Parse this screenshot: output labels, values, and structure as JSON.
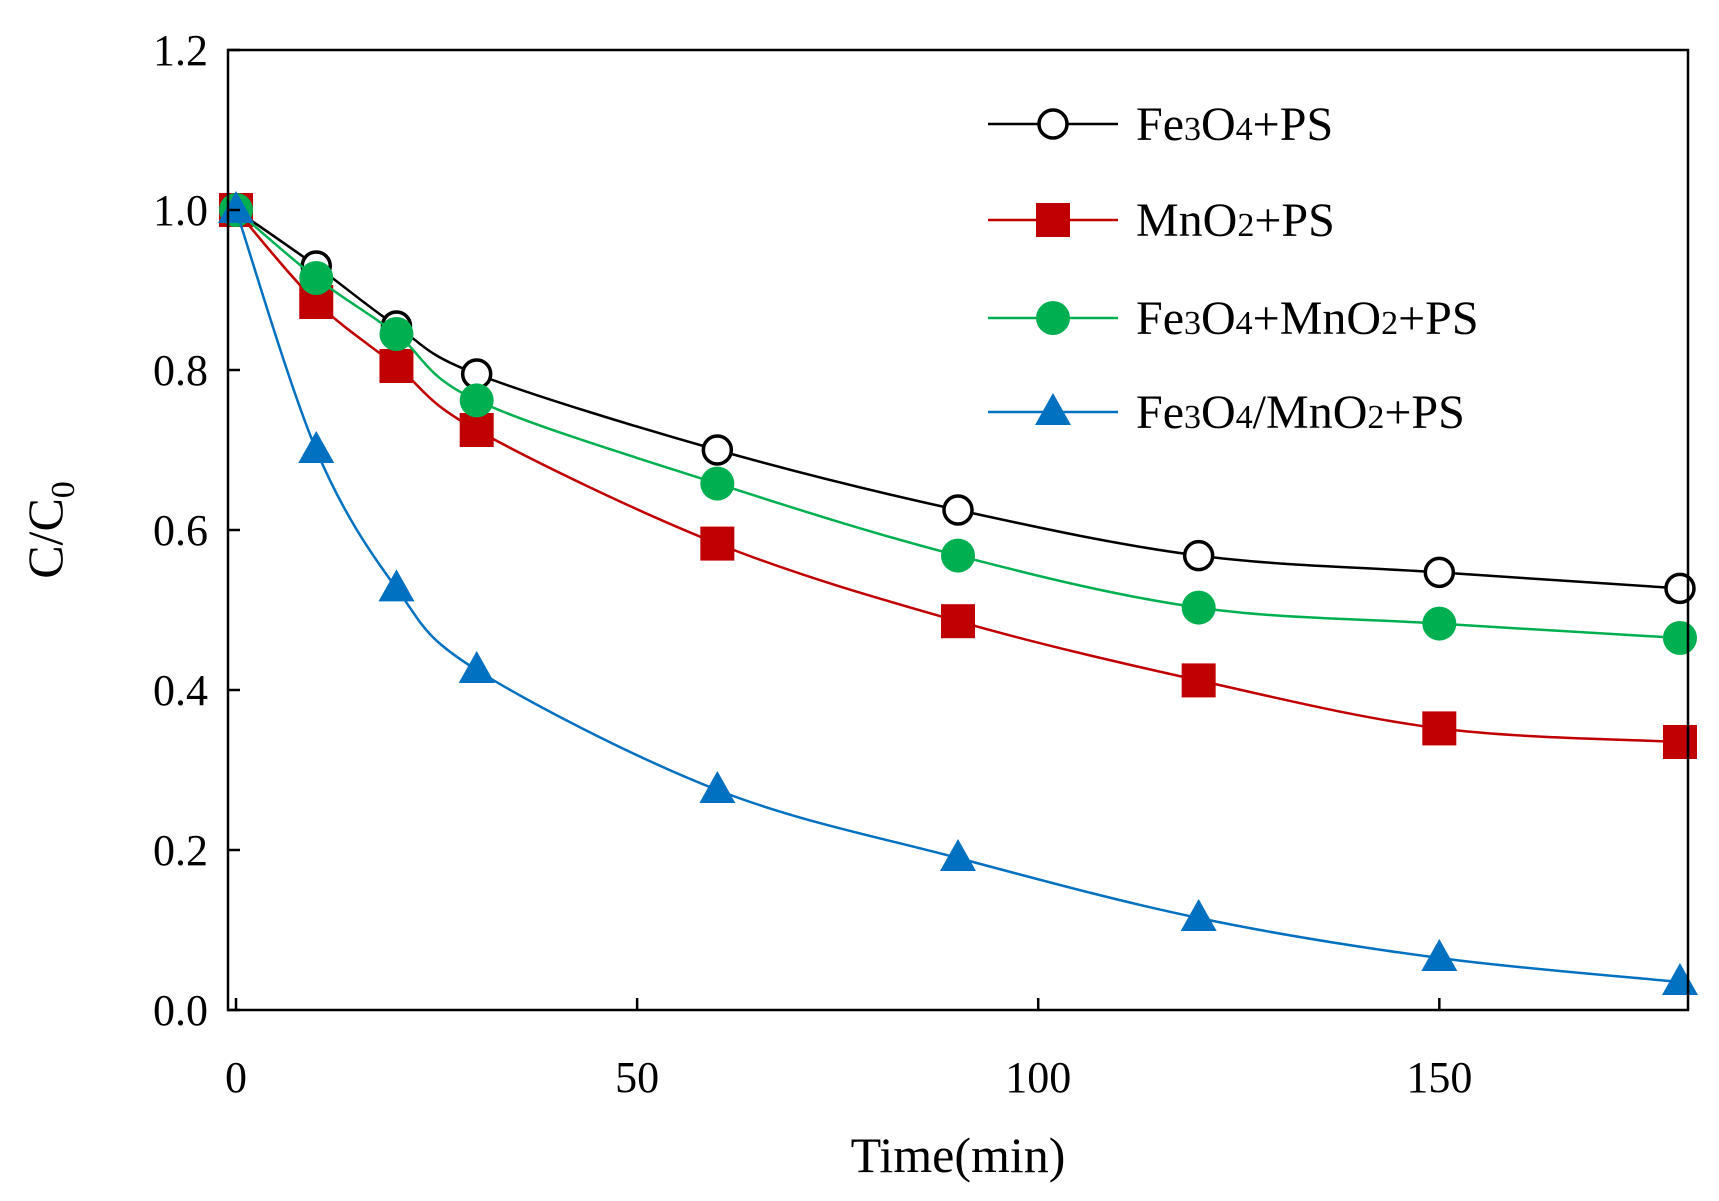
{
  "chart_data": {
    "type": "line",
    "title": "",
    "xlabel": "Time(min)",
    "ylabel": {
      "main": "C/C",
      "sub": "0"
    },
    "xlim": [
      -1,
      181
    ],
    "ylim": [
      0,
      1.2
    ],
    "x_ticks": [
      0,
      50,
      100,
      150
    ],
    "y_ticks": [
      0.0,
      0.2,
      0.4,
      0.6,
      0.8,
      1.0,
      1.2
    ],
    "x_tick_labels": [
      "0",
      "50",
      "100",
      "150"
    ],
    "y_tick_labels": [
      "0.0",
      "0.2",
      "0.4",
      "0.6",
      "0.8",
      "1.0",
      "1.2"
    ],
    "grid": false,
    "legend_position": "top-right",
    "x": [
      0,
      10,
      20,
      30,
      60,
      90,
      120,
      150,
      180
    ],
    "series": [
      {
        "name_parts": [
          [
            "Fe",
            ""
          ],
          [
            "3",
            "sub"
          ],
          [
            "O",
            ""
          ],
          [
            "4",
            "sub"
          ],
          [
            "+PS",
            ""
          ]
        ],
        "name": "Fe3O4+PS",
        "color": "#000000",
        "marker": "open-circle",
        "values": [
          1.0,
          0.93,
          0.855,
          0.795,
          0.7,
          0.625,
          0.568,
          0.547,
          0.527
        ]
      },
      {
        "name_parts": [
          [
            "MnO",
            ""
          ],
          [
            "2",
            "sub"
          ],
          [
            "+PS",
            ""
          ]
        ],
        "name": "MnO2+PS",
        "color": "#c00000",
        "marker": "square",
        "values": [
          1.0,
          0.885,
          0.805,
          0.725,
          0.583,
          0.486,
          0.412,
          0.352,
          0.335
        ]
      },
      {
        "name_parts": [
          [
            "Fe",
            ""
          ],
          [
            "3",
            "sub"
          ],
          [
            "O",
            ""
          ],
          [
            "4",
            "sub"
          ],
          [
            "+MnO",
            ""
          ],
          [
            "2",
            "sub"
          ],
          [
            "+PS",
            ""
          ]
        ],
        "name": "Fe3O4+MnO2+PS",
        "color": "#00b050",
        "marker": "filled-circle",
        "values": [
          1.0,
          0.915,
          0.845,
          0.762,
          0.658,
          0.568,
          0.503,
          0.483,
          0.465
        ]
      },
      {
        "name_parts": [
          [
            "Fe",
            ""
          ],
          [
            "3",
            "sub"
          ],
          [
            "O",
            ""
          ],
          [
            "4",
            "sub"
          ],
          [
            "/MnO",
            ""
          ],
          [
            "2",
            "sub"
          ],
          [
            "+PS",
            ""
          ]
        ],
        "name": "Fe3O4/MnO2+PS",
        "color": "#0070c0",
        "marker": "triangle",
        "values": [
          1.0,
          0.7,
          0.527,
          0.425,
          0.275,
          0.19,
          0.115,
          0.065,
          0.035
        ]
      }
    ]
  }
}
